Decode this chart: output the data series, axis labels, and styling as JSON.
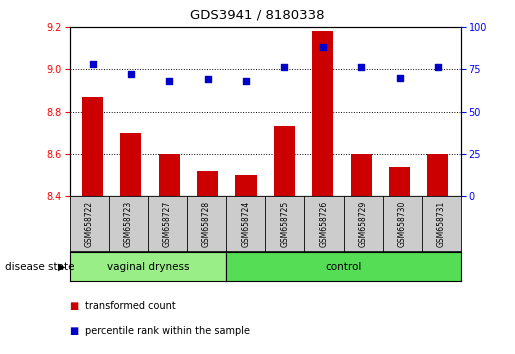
{
  "title": "GDS3941 / 8180338",
  "samples": [
    "GSM658722",
    "GSM658723",
    "GSM658727",
    "GSM658728",
    "GSM658724",
    "GSM658725",
    "GSM658726",
    "GSM658729",
    "GSM658730",
    "GSM658731"
  ],
  "red_values": [
    8.87,
    8.7,
    8.6,
    8.52,
    8.5,
    8.73,
    9.18,
    8.6,
    8.54,
    8.6
  ],
  "blue_values": [
    78,
    72,
    68,
    69,
    68,
    76,
    88,
    76,
    70,
    76
  ],
  "ylim_left": [
    8.4,
    9.2
  ],
  "ylim_right": [
    0,
    100
  ],
  "yticks_left": [
    8.4,
    8.6,
    8.8,
    9.0,
    9.2
  ],
  "yticks_right": [
    0,
    25,
    50,
    75,
    100
  ],
  "group1_label": "vaginal dryness",
  "group2_label": "control",
  "group1_count": 4,
  "group2_count": 6,
  "disease_state_label": "disease state",
  "legend1_label": "transformed count",
  "legend2_label": "percentile rank within the sample",
  "bar_color": "#cc0000",
  "dot_color": "#0000cc",
  "group1_bg": "#99ee88",
  "group2_bg": "#55dd55",
  "sample_box_bg": "#cccccc",
  "bar_bottom": 8.4,
  "grid_values": [
    8.6,
    8.8,
    9.0
  ],
  "bar_width": 0.55
}
